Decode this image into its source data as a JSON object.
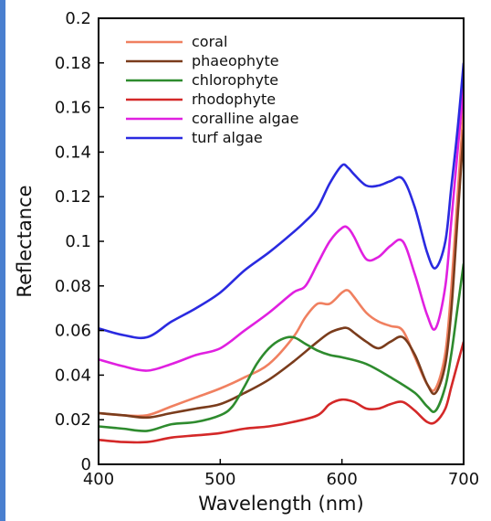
{
  "chart_data": {
    "type": "line",
    "title": "",
    "xlabel": "Wavelength (nm)",
    "ylabel": "Reflectance",
    "xlim": [
      400,
      700
    ],
    "ylim": [
      0,
      0.2
    ],
    "x_ticks": [
      400,
      500,
      600,
      700
    ],
    "x_tick_labels": [
      "400",
      "500",
      "600",
      "700"
    ],
    "y_ticks": [
      0,
      0.02,
      0.04,
      0.06,
      0.08,
      0.1,
      0.12,
      0.14,
      0.16,
      0.18,
      0.2
    ],
    "y_tick_labels": [
      "0",
      "0.02",
      "0.04",
      "0.06",
      "0.08",
      "0.1",
      "0.12",
      "0.14",
      "0.16",
      "0.18",
      "0.2"
    ],
    "grid": false,
    "legend_position": "top-left",
    "series": [
      {
        "name": "coral",
        "color": "#f08060",
        "x": [
          400,
          420,
          440,
          460,
          480,
          500,
          520,
          540,
          560,
          570,
          580,
          590,
          600,
          605,
          610,
          620,
          630,
          640,
          650,
          660,
          670,
          677,
          685,
          690,
          695,
          700
        ],
        "y": [
          0.023,
          0.022,
          0.022,
          0.026,
          0.03,
          0.034,
          0.039,
          0.045,
          0.057,
          0.066,
          0.072,
          0.072,
          0.077,
          0.078,
          0.075,
          0.068,
          0.064,
          0.062,
          0.06,
          0.048,
          0.036,
          0.034,
          0.05,
          0.08,
          0.12,
          0.16
        ]
      },
      {
        "name": "phaeophyte",
        "color": "#7a3c1c",
        "x": [
          400,
          420,
          440,
          460,
          480,
          500,
          520,
          540,
          560,
          580,
          590,
          600,
          605,
          610,
          620,
          630,
          640,
          650,
          660,
          670,
          677,
          685,
          690,
          695,
          700
        ],
        "y": [
          0.023,
          0.022,
          0.021,
          0.023,
          0.025,
          0.027,
          0.032,
          0.038,
          0.046,
          0.055,
          0.059,
          0.061,
          0.061,
          0.059,
          0.055,
          0.052,
          0.055,
          0.057,
          0.049,
          0.036,
          0.032,
          0.045,
          0.07,
          0.11,
          0.15
        ]
      },
      {
        "name": "chlorophyte",
        "color": "#2e8b2e",
        "x": [
          400,
          420,
          440,
          460,
          480,
          500,
          510,
          520,
          530,
          540,
          550,
          560,
          570,
          580,
          590,
          600,
          620,
          640,
          660,
          670,
          677,
          685,
          690,
          695,
          700
        ],
        "y": [
          0.017,
          0.016,
          0.015,
          0.018,
          0.019,
          0.022,
          0.026,
          0.035,
          0.045,
          0.052,
          0.056,
          0.057,
          0.054,
          0.051,
          0.049,
          0.048,
          0.045,
          0.039,
          0.032,
          0.026,
          0.024,
          0.035,
          0.05,
          0.07,
          0.09
        ]
      },
      {
        "name": "rhodophyte",
        "color": "#d42828",
        "x": [
          400,
          420,
          440,
          460,
          480,
          500,
          520,
          540,
          560,
          580,
          590,
          600,
          610,
          620,
          630,
          640,
          650,
          660,
          670,
          677,
          685,
          690,
          695,
          700
        ],
        "y": [
          0.011,
          0.01,
          0.01,
          0.012,
          0.013,
          0.014,
          0.016,
          0.017,
          0.019,
          0.022,
          0.027,
          0.029,
          0.028,
          0.025,
          0.025,
          0.027,
          0.028,
          0.024,
          0.019,
          0.019,
          0.025,
          0.035,
          0.045,
          0.055
        ]
      },
      {
        "name": "coralline algae",
        "color": "#e020e0",
        "x": [
          400,
          420,
          440,
          460,
          480,
          500,
          520,
          540,
          560,
          570,
          580,
          590,
          600,
          605,
          610,
          620,
          630,
          640,
          650,
          660,
          670,
          677,
          685,
          690,
          695,
          700
        ],
        "y": [
          0.047,
          0.044,
          0.042,
          0.045,
          0.049,
          0.052,
          0.06,
          0.068,
          0.077,
          0.08,
          0.09,
          0.1,
          0.106,
          0.106,
          0.102,
          0.092,
          0.093,
          0.098,
          0.1,
          0.085,
          0.067,
          0.061,
          0.08,
          0.11,
          0.14,
          0.17
        ]
      },
      {
        "name": "turf algae",
        "color": "#2a2ae0",
        "x": [
          400,
          420,
          440,
          460,
          480,
          500,
          520,
          540,
          560,
          570,
          580,
          590,
          600,
          605,
          610,
          620,
          630,
          640,
          650,
          660,
          670,
          677,
          685,
          690,
          695,
          700
        ],
        "y": [
          0.061,
          0.058,
          0.057,
          0.064,
          0.07,
          0.077,
          0.087,
          0.095,
          0.104,
          0.109,
          0.115,
          0.126,
          0.134,
          0.133,
          0.13,
          0.125,
          0.125,
          0.127,
          0.128,
          0.115,
          0.095,
          0.088,
          0.1,
          0.125,
          0.15,
          0.18
        ]
      }
    ]
  }
}
